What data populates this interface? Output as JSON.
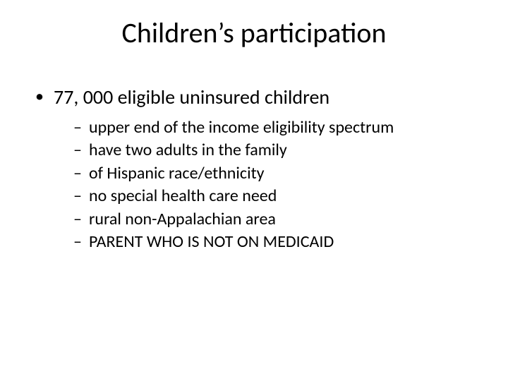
{
  "title": "Children’s participation",
  "bullets": {
    "main": "77, 000 eligible uninsured children",
    "subs": [
      "upper end of the income eligibility spectrum",
      "have two adults in the family",
      "of Hispanic race/ethnicity",
      "no special health care need",
      "rural non-Appalachian area",
      "PARENT WHO IS NOT ON MEDICAID"
    ]
  },
  "colors": {
    "background": "#ffffff",
    "text": "#000000"
  },
  "typography": {
    "title_fontsize": 40,
    "lvl1_fontsize": 28,
    "lvl2_fontsize": 24,
    "font_family": "Calibri"
  }
}
